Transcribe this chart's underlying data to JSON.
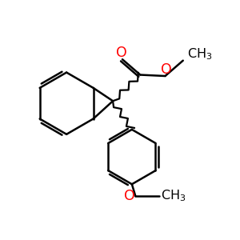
{
  "background": "#ffffff",
  "bond_color": "#000000",
  "red_color": "#ff0000",
  "bond_width": 1.8,
  "figure_size": [
    3.0,
    3.0
  ],
  "dpi": 100,
  "xlim": [
    0,
    10
  ],
  "ylim": [
    0,
    10
  ]
}
